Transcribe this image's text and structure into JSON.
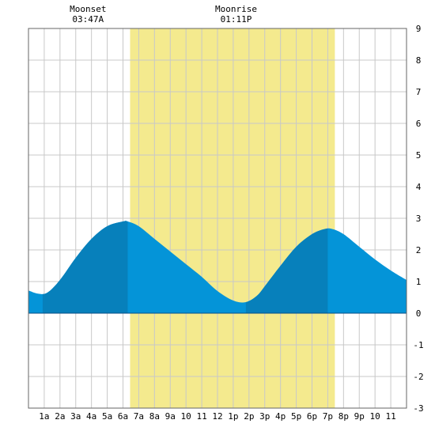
{
  "chart_data": {
    "type": "area",
    "x_tick_labels": [
      "1a",
      "2a",
      "3a",
      "4a",
      "5a",
      "6a",
      "7a",
      "8a",
      "9a",
      "10",
      "11",
      "12",
      "1p",
      "2p",
      "3p",
      "4p",
      "5p",
      "6p",
      "7p",
      "8p",
      "9p",
      "10",
      "11"
    ],
    "y_ticks": [
      9,
      8,
      7,
      6,
      5,
      4,
      3,
      2,
      1,
      0,
      -1,
      -2,
      -3
    ],
    "xlim": [
      0,
      24
    ],
    "ylim": [
      -3,
      9
    ],
    "grid": true,
    "daylight": {
      "start": 6.45,
      "end": 19.45
    },
    "dark_bands": [
      [
        0.9,
        6.3
      ],
      [
        13.8,
        19.0
      ]
    ],
    "moon_events": [
      {
        "name": "Moonset",
        "time": "03:47A",
        "x": 3.78
      },
      {
        "name": "Moonrise",
        "time": "01:11P",
        "x": 13.18
      }
    ],
    "series": [
      {
        "x": [
          0,
          0.6,
          1.2,
          2,
          3,
          4,
          5,
          6,
          6.3,
          7,
          8,
          9,
          10,
          11,
          12,
          13,
          13.8,
          14.5,
          15,
          16,
          17,
          18,
          18.8,
          19.3,
          20,
          21,
          22,
          23,
          24
        ],
        "values": [
          0.72,
          0.62,
          0.65,
          1.05,
          1.75,
          2.35,
          2.75,
          2.9,
          2.9,
          2.75,
          2.35,
          1.95,
          1.55,
          1.15,
          0.7,
          0.4,
          0.35,
          0.55,
          0.85,
          1.5,
          2.1,
          2.5,
          2.66,
          2.66,
          2.5,
          2.1,
          1.7,
          1.35,
          1.05
        ]
      }
    ],
    "colors": {
      "daylight": "#f4ea8e",
      "tide": "#0494d8",
      "tide_dark": "#0780bb",
      "grid": "#c8c8c8",
      "zero_line": "#0a4f86"
    }
  }
}
